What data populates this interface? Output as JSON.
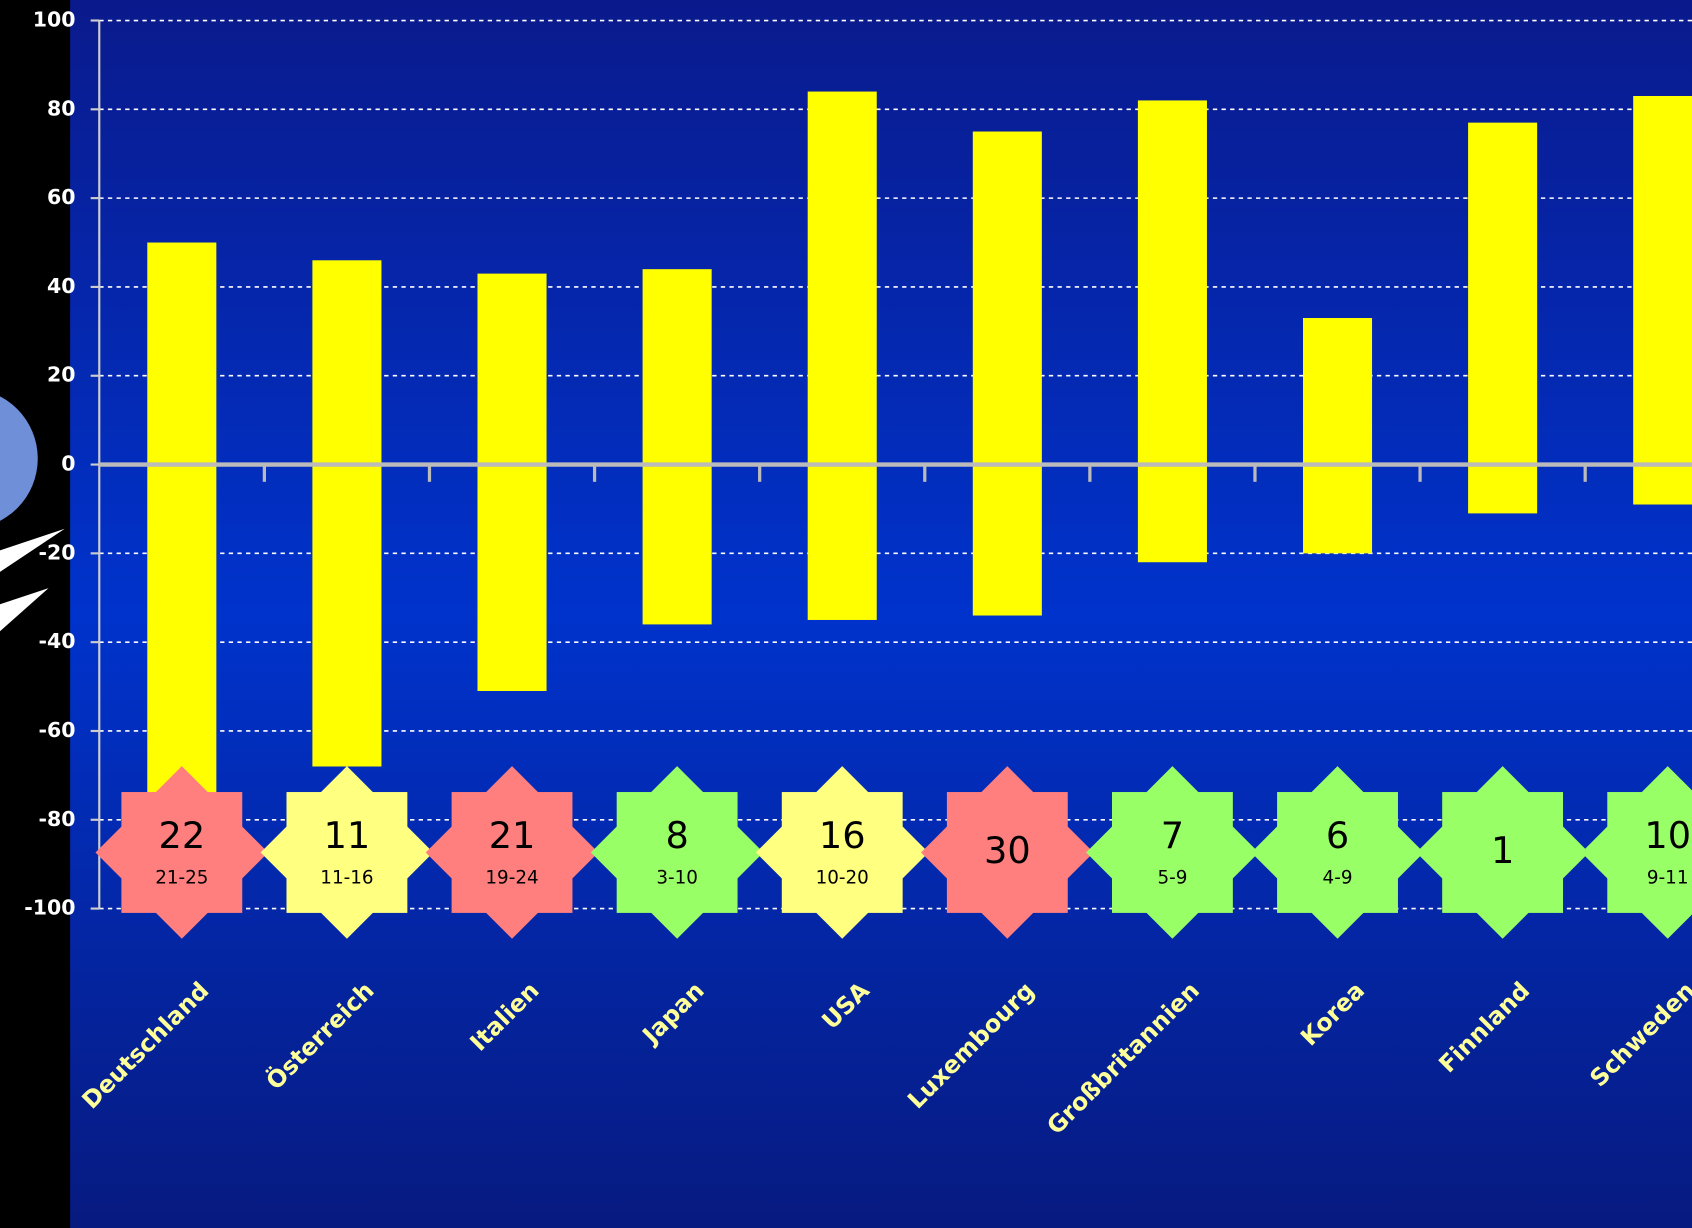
{
  "chart_data": {
    "type": "range_bar",
    "categories": [
      "Deutschland",
      "Österreich",
      "Italien",
      "Japan",
      "USA",
      "Luxembourg",
      "Großbritannien",
      "Korea",
      "Finnland",
      "Schweden"
    ],
    "low": [
      -75,
      -68,
      -51,
      -36,
      -35,
      -34,
      -22,
      -20,
      -11,
      -9
    ],
    "high": [
      50,
      46,
      43,
      44,
      84,
      75,
      82,
      33,
      77,
      83
    ],
    "color": "#ffff00",
    "ranks": [
      "22",
      "11",
      "21",
      "8",
      "16",
      "30",
      "7",
      "6",
      "1",
      "10"
    ],
    "ranges": [
      "21-25",
      "11-16",
      "19-24",
      "3-10",
      "10-20",
      null,
      "5-9",
      "4-9",
      null,
      "9-11"
    ],
    "rank_colors": [
      "#ff7f7f",
      "#ffff80",
      "#ff7f7f",
      "#99ff66",
      "#ffff80",
      "#ff7f7f",
      "#99ff66",
      "#99ff66",
      "#99ff66",
      "#99ff66"
    ],
    "ylim": [
      -100,
      100
    ],
    "yticks": [
      -100,
      -80,
      -60,
      -40,
      -20,
      0,
      20,
      40,
      60,
      80,
      100
    ],
    "grid": true
  }
}
